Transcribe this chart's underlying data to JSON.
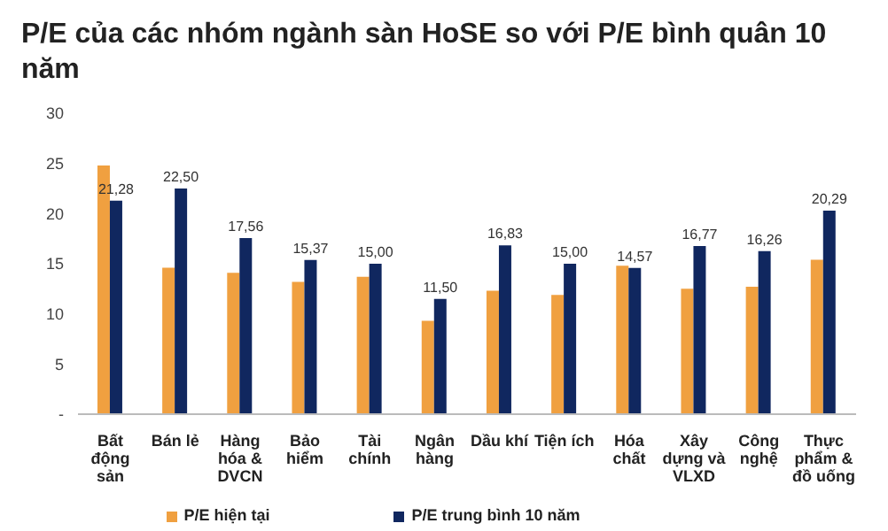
{
  "chart_data": {
    "type": "bar",
    "title": "P/E của các nhóm ngành sàn HoSE so với P/E bình quân 10 năm",
    "categories": [
      "Bất động sản",
      "Bán lẻ",
      "Hàng hóa & DVCN",
      "Bảo hiểm",
      "Tài chính",
      "Ngân hàng",
      "Dầu khí",
      "Tiện ích",
      "Hóa chất",
      "Xây dựng và VLXD",
      "Công nghệ",
      "Thực phẩm & đồ uống"
    ],
    "series": [
      {
        "name": "P/E hiện tại",
        "color": "#f0a040",
        "values": [
          24.8,
          14.6,
          14.1,
          13.2,
          13.7,
          9.3,
          12.3,
          11.9,
          14.8,
          12.5,
          12.7,
          15.4
        ]
      },
      {
        "name": "P/E trung bình 10 năm",
        "color": "#10275f",
        "values": [
          21.28,
          22.5,
          17.56,
          15.37,
          15,
          11.5,
          16.83,
          15,
          14.57,
          16.77,
          16.26,
          20.29
        ],
        "value_labels": [
          "21,28",
          "22,50",
          "17,56",
          "15,37",
          "15,00",
          "11,50",
          "16,83",
          "15,00",
          "14,57",
          "16,77",
          "16,26",
          "20,29"
        ]
      }
    ],
    "ylim": [
      0,
      30
    ],
    "yticks": [
      {
        "value": 0,
        "label": "-"
      },
      5,
      10,
      15,
      20,
      25,
      30
    ],
    "legend": "bottom"
  }
}
